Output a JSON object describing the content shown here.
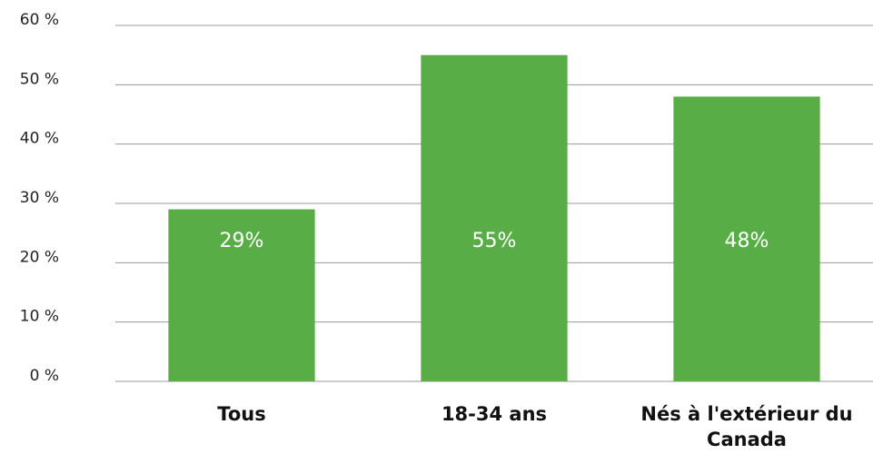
{
  "chart_data": {
    "type": "bar",
    "categories": [
      "Tous",
      "18-34 ans",
      "Nés à l'extérieur du Canada"
    ],
    "values": [
      29,
      55,
      48
    ],
    "value_labels": [
      "29%",
      "55%",
      "48%"
    ],
    "color": "#58ad46",
    "ylim": [
      0,
      60
    ],
    "yticks": [
      {
        "value": 0,
        "label": "0 %"
      },
      {
        "value": 10,
        "label": "10 %"
      },
      {
        "value": 20,
        "label": "20 %"
      },
      {
        "value": 30,
        "label": "30 %"
      },
      {
        "value": 40,
        "label": "40 %"
      },
      {
        "value": 50,
        "label": "50 %"
      },
      {
        "value": 60,
        "label": "60 %"
      }
    ],
    "grid": true
  }
}
